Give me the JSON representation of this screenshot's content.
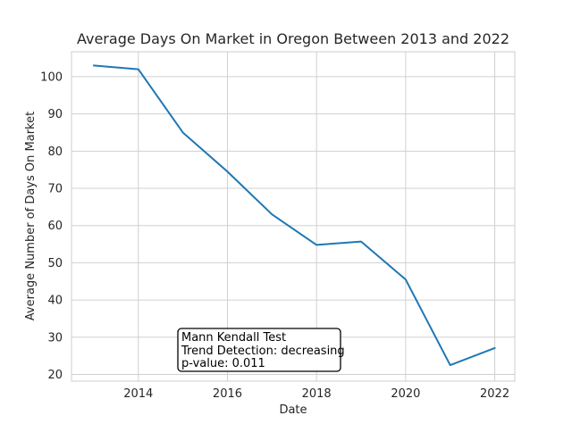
{
  "chart_data": {
    "type": "line",
    "title": "Average Days On Market in Oregon Between 2013 and 2022",
    "xlabel": "Date",
    "ylabel": "Average Number of Days On Market",
    "xlim": [
      2012.5,
      2022.45
    ],
    "ylim": [
      18.2,
      106.7
    ],
    "x_ticks": [
      2014,
      2016,
      2018,
      2020,
      2022
    ],
    "y_ticks": [
      20,
      30,
      40,
      50,
      60,
      70,
      80,
      90,
      100
    ],
    "grid": true,
    "series": [
      {
        "x": [
          2013,
          2014,
          2015,
          2016,
          2017,
          2018,
          2019,
          2020,
          2021,
          2022
        ],
        "values": [
          103.0,
          102.0,
          85.0,
          74.5,
          63.0,
          54.8,
          55.7,
          45.5,
          22.5,
          27.1
        ],
        "color": "#1f77b4"
      }
    ],
    "annotation": {
      "lines": [
        "Mann Kendall Test",
        "Trend Detection: decreasing",
        "p-value: 0.011"
      ],
      "placement": "bottom-center"
    }
  }
}
